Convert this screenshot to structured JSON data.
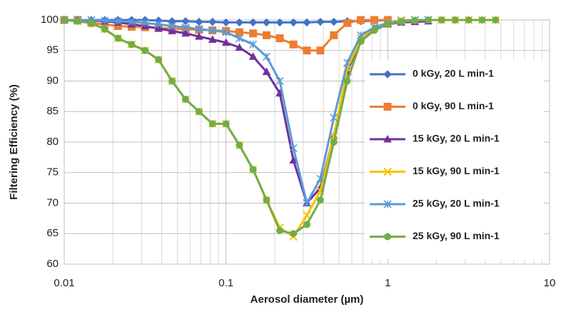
{
  "chart_data": {
    "type": "line",
    "x_label": "Aerosol diameter (µm)",
    "y_label": "Filtering Efficiency (%)",
    "x_scale": "log",
    "grid": true,
    "minor_grid": true,
    "legend": "right",
    "xlim": [
      0.01,
      10
    ],
    "xticks": [
      0.01,
      0.1,
      1,
      10
    ],
    "ylim": [
      60,
      100
    ],
    "yticks": [
      60,
      65,
      70,
      75,
      80,
      85,
      90,
      95,
      100
    ],
    "x": [
      0.01,
      0.0121,
      0.0147,
      0.0178,
      0.0215,
      0.0261,
      0.0316,
      0.0383,
      0.0464,
      0.0562,
      0.0681,
      0.0825,
      0.1,
      0.121,
      0.147,
      0.178,
      0.215,
      0.261,
      0.316,
      0.383,
      0.464,
      0.562,
      0.681,
      0.825,
      1,
      1.21,
      1.47,
      1.78,
      2.15,
      2.61,
      3.16,
      3.83,
      4.64
    ],
    "series": [
      {
        "name": "0 kGy, 20 L min-1",
        "color": "#4472c4",
        "marker": "diamond",
        "values": [
          100,
          100,
          100,
          100,
          100,
          100,
          100,
          99.9,
          99.8,
          99.8,
          99.7,
          99.7,
          99.6,
          99.6,
          99.6,
          99.6,
          99.6,
          99.6,
          99.6,
          99.7,
          99.7,
          99.8,
          99.8,
          99.9,
          100,
          null,
          null,
          null,
          null,
          null,
          null,
          null,
          null
        ]
      },
      {
        "name": "0 kGy, 90 L min-1",
        "color": "#ed7d31",
        "marker": "square",
        "values": [
          100,
          100,
          99.5,
          99.3,
          99,
          98.9,
          98.8,
          98.7,
          98.6,
          98.5,
          98.4,
          98.3,
          98.2,
          98,
          97.8,
          97.5,
          97,
          96,
          95,
          95,
          97.5,
          99.5,
          100,
          100,
          100,
          null,
          null,
          null,
          null,
          null,
          null,
          null,
          null
        ]
      },
      {
        "name": "15 kGy, 20 L min-1",
        "color": "#7030a0",
        "marker": "triangle",
        "values": [
          100,
          100,
          99.9,
          99.8,
          99.6,
          99.3,
          99,
          98.6,
          98.2,
          97.8,
          97.3,
          96.8,
          96.3,
          95.5,
          94,
          91.5,
          88,
          77,
          70,
          72.5,
          81,
          91.5,
          97,
          98.7,
          99.3,
          99.6,
          99.7,
          99.8,
          null,
          null,
          null,
          null,
          null
        ]
      },
      {
        "name": "15 kGy, 90 L min-1",
        "color": "#ffc000",
        "marker": "x",
        "values": [
          100,
          99.8,
          99.5,
          98.5,
          97,
          96,
          95,
          93.5,
          90,
          87,
          85,
          83,
          83,
          79.5,
          75.5,
          70.5,
          66,
          64.5,
          68,
          72,
          81,
          92,
          97,
          98.8,
          99.5,
          100,
          100,
          100,
          100,
          100,
          100,
          100,
          100
        ]
      },
      {
        "name": "25 kGy, 20 L min-1",
        "color": "#5b9bd5",
        "marker": "asterisk",
        "values": [
          100,
          100,
          100,
          99.9,
          99.8,
          99.7,
          99.5,
          99.3,
          99,
          98.8,
          98.5,
          98.3,
          98,
          97,
          96,
          94,
          90,
          79,
          70,
          74,
          84,
          93,
          97.5,
          98.8,
          99.5,
          99.8,
          100,
          100,
          null,
          null,
          null,
          null,
          null
        ]
      },
      {
        "name": "25 kGy, 90 L min-1",
        "color": "#70ad47",
        "marker": "circle",
        "values": [
          100,
          99.8,
          99.5,
          98.5,
          97,
          96,
          95,
          93.5,
          90,
          87,
          85,
          83,
          83,
          79.5,
          75.5,
          70.5,
          65.5,
          65,
          66.5,
          70.5,
          80,
          90,
          96.5,
          98.3,
          99.3,
          99.7,
          99.9,
          100,
          100,
          100,
          100,
          100,
          100
        ]
      }
    ]
  }
}
